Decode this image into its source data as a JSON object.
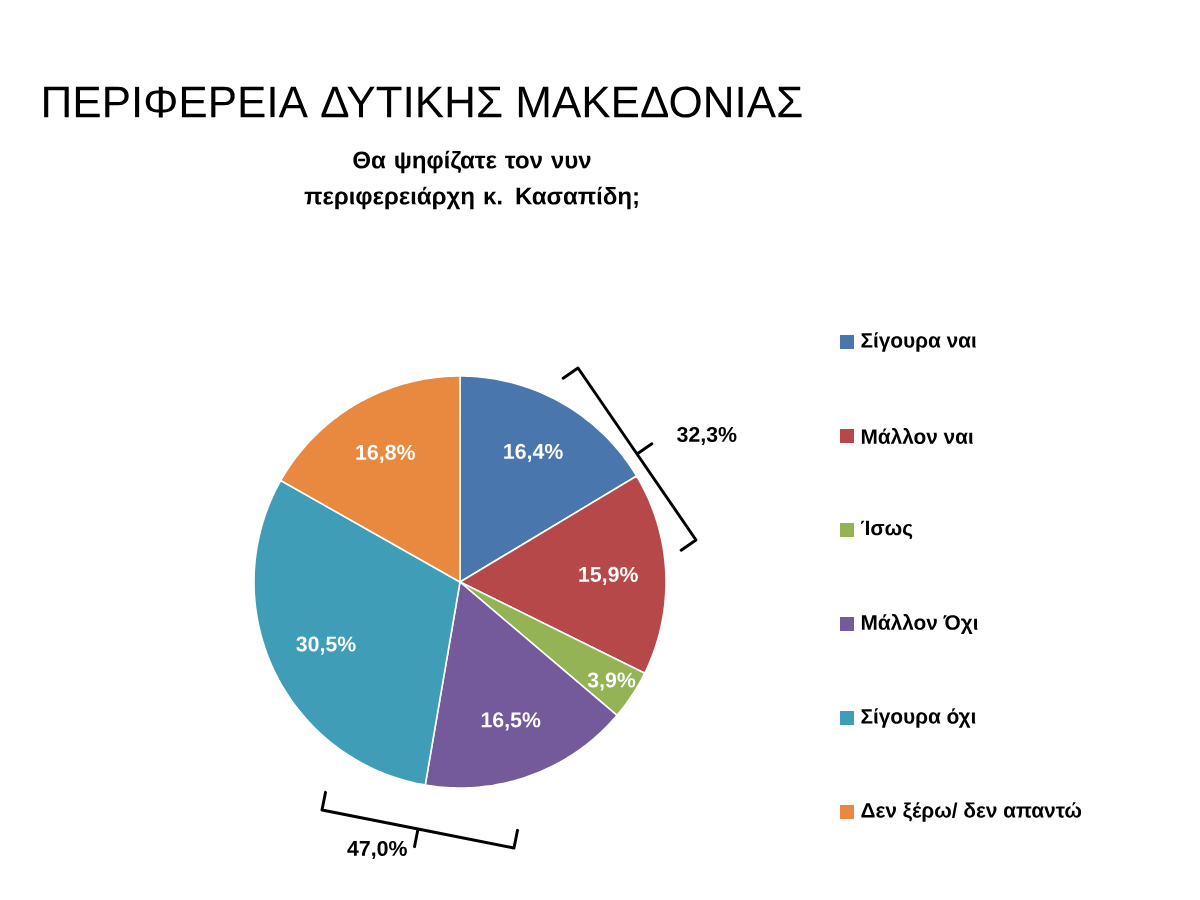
{
  "chart_data": {
    "type": "pie",
    "title": "ΠΕΡΙΦΕΡΕΙΑ ΔΥΤΙΚΗΣ ΜΑΚΕΔΟΝΙΑΣ",
    "subtitle": "Θα ψηφίζατε τον νυν περιφερειάρχη κ. Κασαπίδη;",
    "categories": [
      "Σίγουρα ναι",
      "Μάλλον ναι",
      "Ίσως",
      "Μάλλον Όχι",
      "Σίγουρα όχι",
      "Δεν ξέρω/ δεν απαντώ"
    ],
    "values": [
      16.4,
      15.9,
      3.9,
      16.5,
      30.5,
      16.8
    ],
    "colors": [
      "#4a76ae",
      "#b7484a",
      "#93b355",
      "#755a9b",
      "#3f9db8",
      "#e8893f"
    ],
    "value_labels": [
      "16,4%",
      "15,9%",
      "3,9%",
      "16,5%",
      "30,5%",
      "16,8%"
    ],
    "annotations": [
      "32,3%",
      "47,0%"
    ],
    "legend": "right"
  }
}
